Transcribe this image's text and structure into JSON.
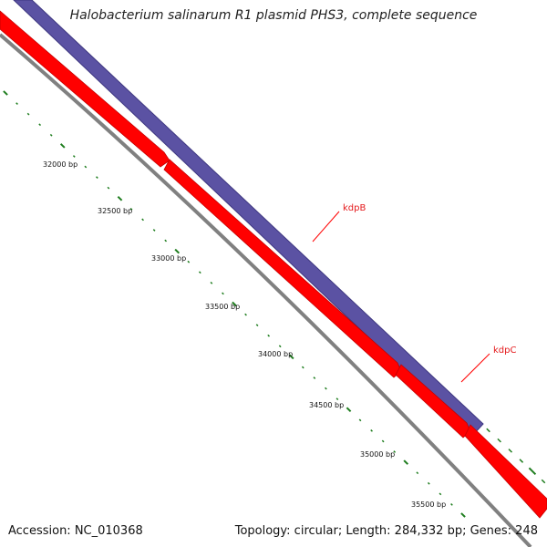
{
  "title": "Halobacterium salinarum R1 plasmid PHS3, complete sequence",
  "footer": {
    "accession": "Accession: NC_010368",
    "summary": "Topology: circular; Length: 284,332 bp; Genes: 248"
  },
  "colors": {
    "forward_gene": "#5b52a3",
    "reverse_gene": "#ff0000",
    "backbone": "#808080",
    "tick": "#1e7d1e",
    "label_line": "#ff0000"
  },
  "ticks": [
    {
      "label": "32000 bp"
    },
    {
      "label": "32500 bp"
    },
    {
      "label": "33000 bp"
    },
    {
      "label": "33500 bp"
    },
    {
      "label": "34000 bp"
    },
    {
      "label": "34500 bp"
    },
    {
      "label": "35000 bp"
    },
    {
      "label": "35500 bp"
    }
  ],
  "genes": [
    {
      "name": "kdpB"
    },
    {
      "name": "kdpC"
    }
  ]
}
